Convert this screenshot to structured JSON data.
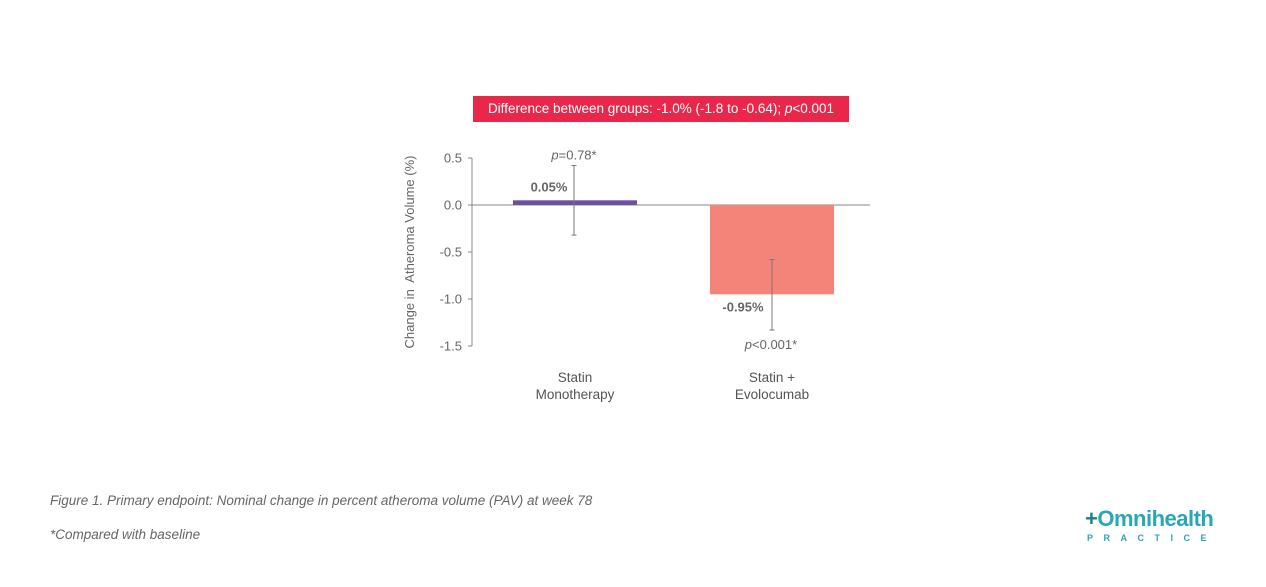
{
  "chart_data": {
    "type": "bar",
    "banner": {
      "text": "Difference between groups: -1.0% (-1.8 to -0.64); ",
      "p_italic": "p",
      "p_rest": "<0.001"
    },
    "ylabel": "Change in  Atheroma Volume (%)",
    "ylim": [
      -1.5,
      0.5
    ],
    "yticks": [
      "0.5",
      "0.0",
      "-0.5",
      "-1.0",
      "-1.5"
    ],
    "ytick_values": [
      0.5,
      0.0,
      -0.5,
      -1.0,
      -1.5
    ],
    "categories": [
      {
        "lines": [
          "Statin",
          "Monotherapy"
        ]
      },
      {
        "lines": [
          "Statin +",
          "Evolocumab"
        ]
      }
    ],
    "values": [
      0.05,
      -0.95
    ],
    "value_labels": [
      "0.05%",
      "-0.95%"
    ],
    "error_bars": [
      [
        -0.32,
        0.42
      ],
      [
        -1.33,
        -0.58
      ]
    ],
    "pvalue_labels": [
      {
        "p": "p",
        "rest": "=0.78*"
      },
      {
        "p": "p",
        "rest": "<0.001*"
      }
    ],
    "colors": [
      "#6c50a6",
      "#f4837a"
    ]
  },
  "caption": "Figure 1. Primary endpoint: Nominal change in percent atheroma volume (PAV) at week 78",
  "footnote": "*Compared with baseline",
  "logo": {
    "plus": "+",
    "main": "Omnihealth",
    "sub": "PRACTICE"
  }
}
